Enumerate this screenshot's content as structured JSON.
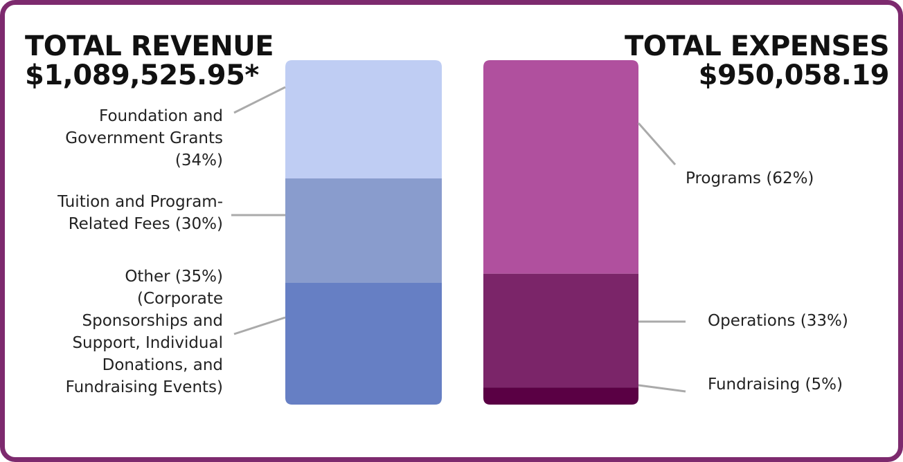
{
  "chart_data": [
    {
      "type": "bar",
      "stacked": true,
      "title": "TOTAL REVENUE",
      "subtitle": "$1,089,525.95*",
      "series": [
        {
          "name": "Foundation and\nGovernment Grants\n(34%)",
          "value": 34,
          "color": "#bfcdf3"
        },
        {
          "name": "Tuition and Program-\nRelated Fees (30%)",
          "value": 30,
          "color": "#899ccd"
        },
        {
          "name": "Other (35%)\n(Corporate\nSponsorships and\nSupport, Individual\nDonations, and\nFundraising Events)",
          "value": 35,
          "color": "#667fc4"
        }
      ]
    },
    {
      "type": "bar",
      "stacked": true,
      "title": "TOTAL EXPENSES",
      "subtitle": "$950,058.19",
      "series": [
        {
          "name": "Programs (62%)",
          "value": 62,
          "color": "#b0509e"
        },
        {
          "name": "Operations (33%)",
          "value": 33,
          "color": "#7b2569"
        },
        {
          "name": "Fundraising (5%)",
          "value": 5,
          "color": "#5a0044"
        }
      ]
    }
  ],
  "colors": {
    "border": "#7d2a6e",
    "leader": "#aaaaaa"
  }
}
